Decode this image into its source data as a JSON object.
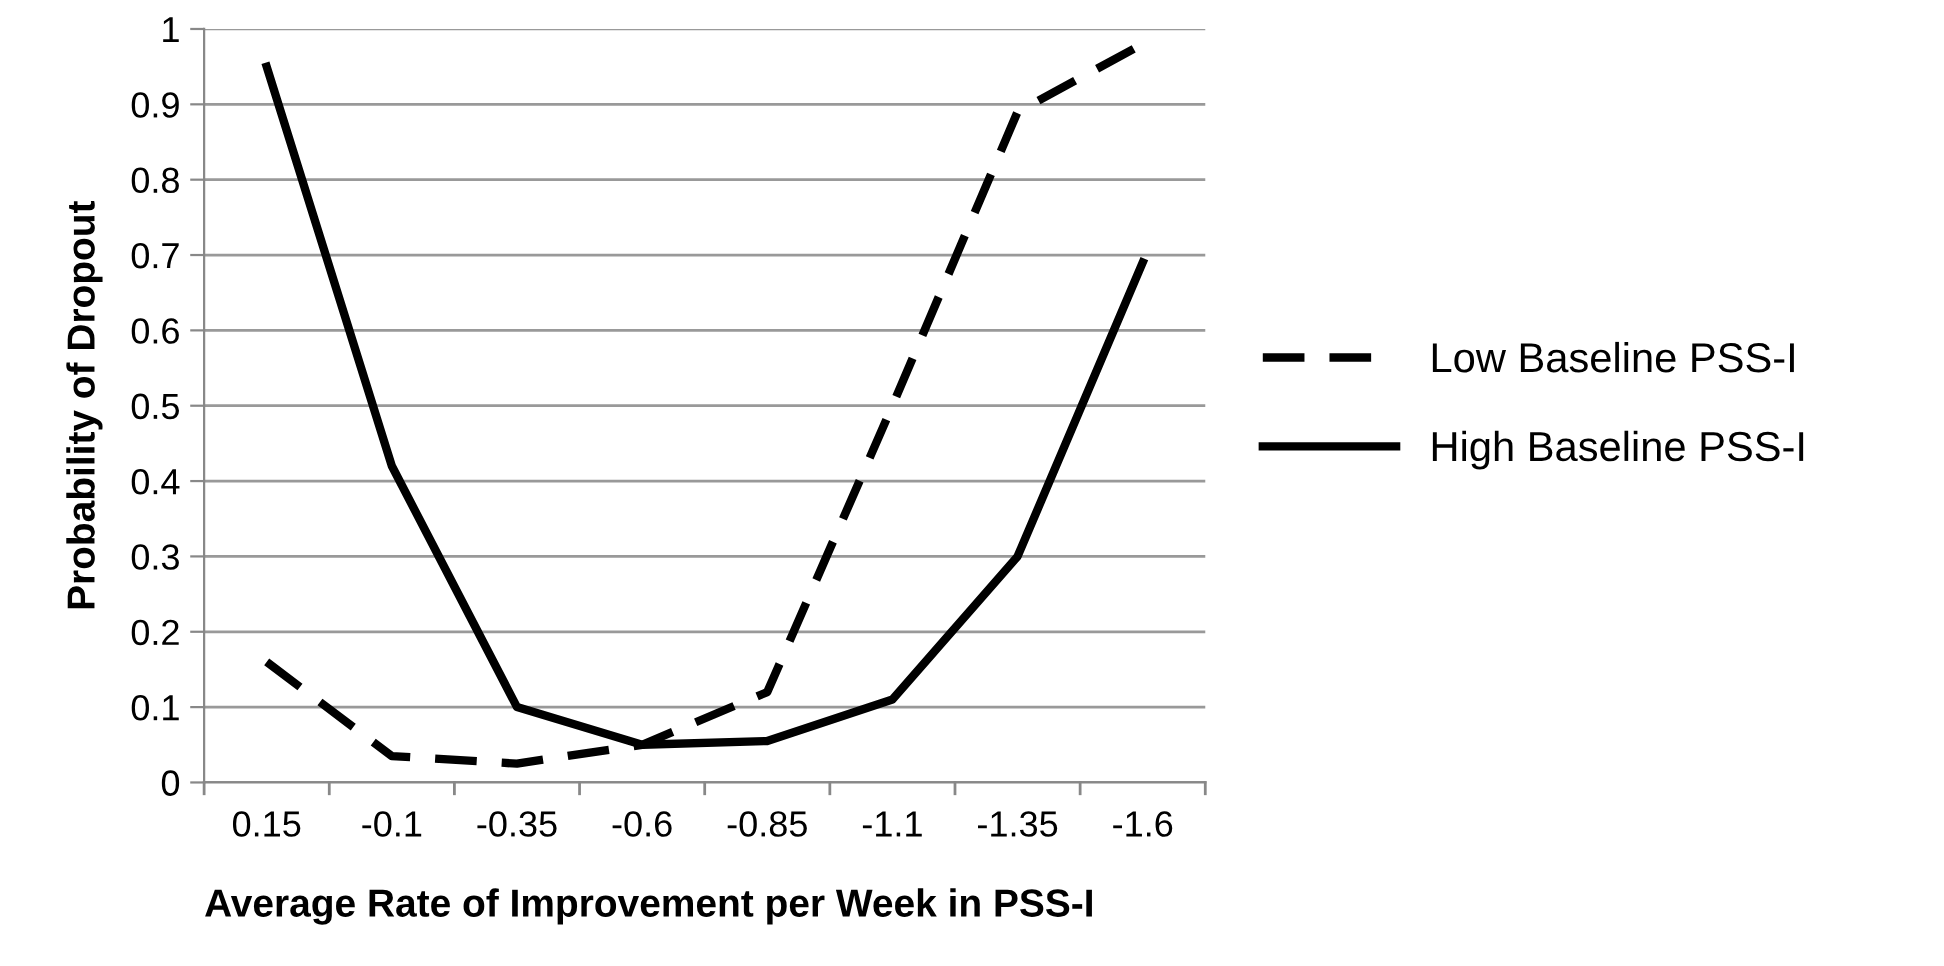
{
  "chart_data": {
    "type": "line",
    "xlabel": "Average Rate of Improvement per Week in PSS-I",
    "ylabel": "Probability of Dropout",
    "categories": [
      "0.15",
      "-0.1",
      "-0.35",
      "-0.6",
      "-0.85",
      "-1.1",
      "-1.35",
      "-1.6"
    ],
    "series": [
      {
        "name": "Low Baseline PSS-I",
        "color": "#000000",
        "line_style": "dashed",
        "values": [
          0.16,
          0.035,
          0.025,
          0.05,
          0.12,
          0.5,
          0.89,
          0.98
        ]
      },
      {
        "name": "High Baseline PSS-I",
        "color": "#000000",
        "line_style": "solid",
        "values": [
          0.95,
          0.42,
          0.1,
          0.05,
          0.055,
          0.11,
          0.3,
          0.69
        ]
      }
    ],
    "ylim": [
      0,
      1
    ],
    "yticks": [
      0,
      0.1,
      0.2,
      0.3,
      0.4,
      0.5,
      0.6,
      0.7,
      0.8,
      0.9,
      1
    ],
    "grid": "y",
    "legend": "right",
    "marker": "none"
  }
}
